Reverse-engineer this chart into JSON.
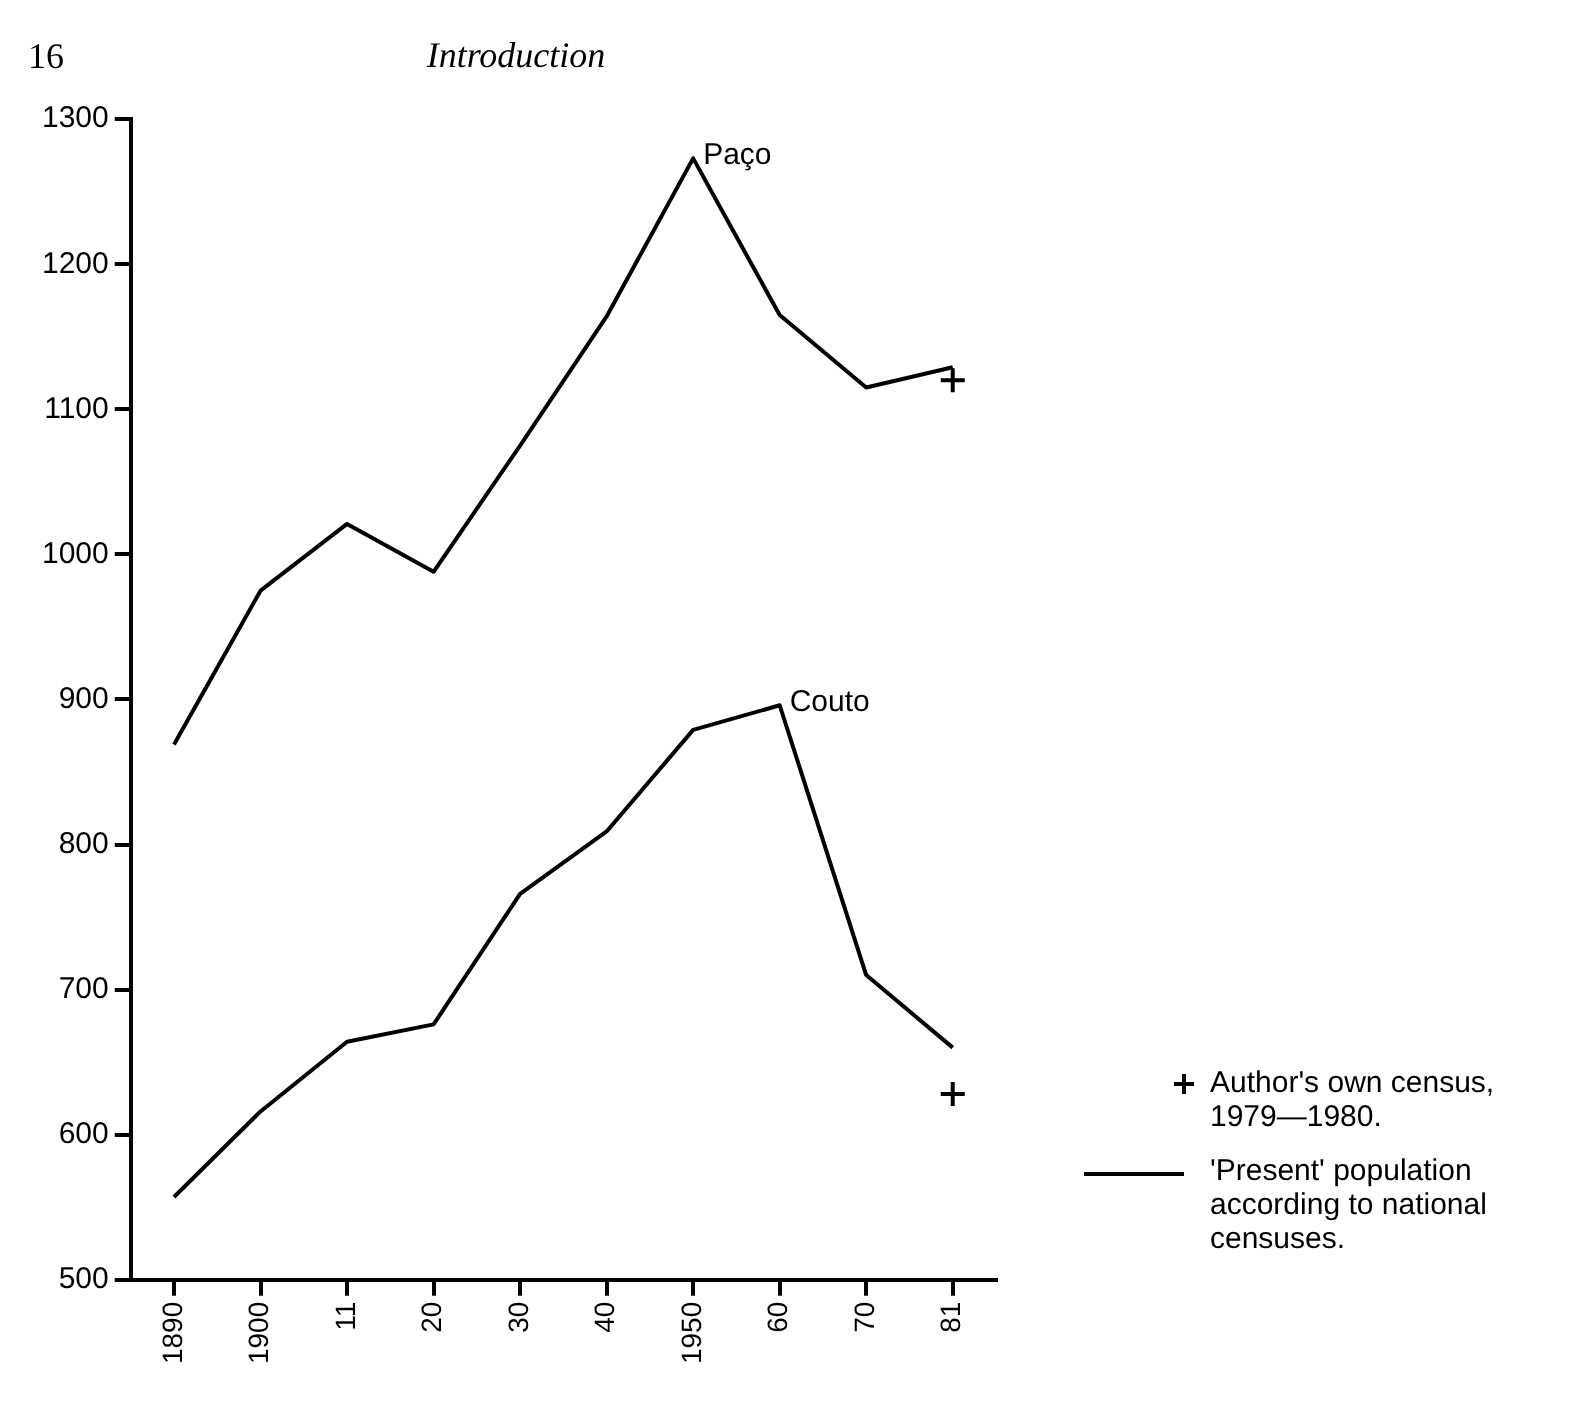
{
  "chart_data": {
    "type": "line",
    "title": "Introduction",
    "categories": [
      "1890",
      "1900",
      "11",
      "20",
      "30",
      "40",
      "1950",
      "60",
      "70",
      "81"
    ],
    "series": [
      {
        "name": "Paço",
        "color": "#000000",
        "values": [
          869,
          975,
          1021,
          988,
          1075,
          1164,
          1273,
          1165,
          1115,
          1129
        ]
      },
      {
        "name": "Couto",
        "color": "#000000",
        "values": [
          557,
          616,
          664,
          676,
          766,
          809,
          879,
          896,
          710,
          660
        ]
      },
      {
        "name": "Author's own census, 1979—1980.",
        "type": "scatter",
        "marker": "cross",
        "color": "#000000",
        "x": [
          "81",
          "81"
        ],
        "values": [
          1120,
          628
        ]
      }
    ],
    "ylim": [
      500,
      1300
    ],
    "yticks": [
      500,
      600,
      700,
      800,
      900,
      1000,
      1100,
      1200,
      1300
    ],
    "grid": false,
    "marker": "none",
    "legend": "bottom right",
    "annotations": [
      "16",
      "'Present' population according to national censuses."
    ]
  }
}
